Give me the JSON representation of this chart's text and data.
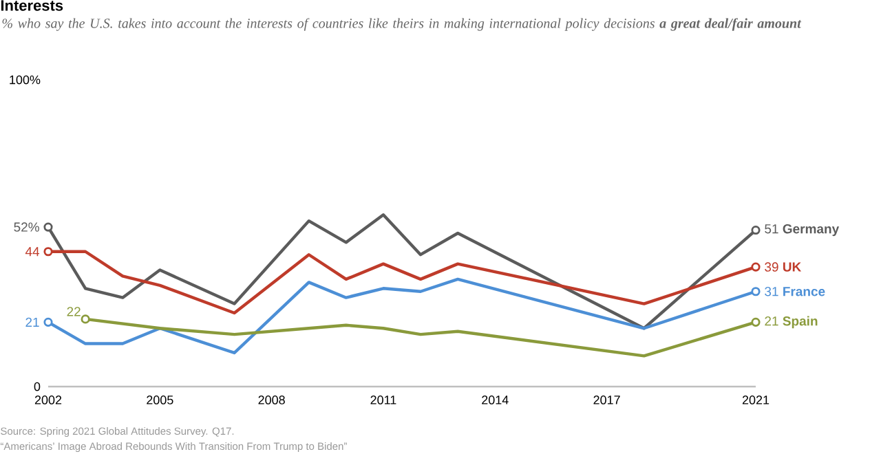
{
  "chart_data": {
    "type": "line",
    "title": "Interests",
    "subtitle": "% who say the U.S. takes into account the interests of countries like theirs in making international policy decisions **a great deal/fair amount**",
    "x": [
      2002,
      2003,
      2004,
      2005,
      2007,
      2009,
      2010,
      2011,
      2012,
      2013,
      2018,
      2021
    ],
    "xlim": [
      2002,
      2021
    ],
    "xticks": [
      2002,
      2005,
      2008,
      2011,
      2014,
      2017,
      2021
    ],
    "ylim": [
      0,
      100
    ],
    "yticks": [
      0,
      {
        "value": 100,
        "label": "100%"
      }
    ],
    "grid": false,
    "line_style": "solid",
    "series": [
      {
        "name": "Germany",
        "color": "#5b5b5b",
        "values": [
          52,
          32,
          29,
          38,
          27,
          54,
          47,
          56,
          43,
          50,
          19,
          51
        ],
        "value_labels": [
          "52%",
          null,
          null,
          null,
          null,
          null,
          null,
          null,
          null,
          null,
          null,
          "51"
        ]
      },
      {
        "name": "UK",
        "color": "#bf3b2a",
        "values": [
          44,
          44,
          36,
          33,
          24,
          43,
          35,
          40,
          35,
          40,
          27,
          39
        ],
        "value_labels": [
          "44",
          null,
          null,
          null,
          null,
          null,
          null,
          null,
          null,
          null,
          null,
          "39"
        ]
      },
      {
        "name": "France",
        "color": "#4c8fd6",
        "values": [
          21,
          14,
          14,
          19,
          11,
          34,
          29,
          32,
          31,
          35,
          19,
          31
        ],
        "value_labels": [
          "21",
          null,
          null,
          null,
          null,
          null,
          null,
          null,
          null,
          null,
          null,
          "31"
        ]
      },
      {
        "name": "Spain",
        "color": "#8a9a3b",
        "x": [
          2003,
          2005,
          2007,
          2009,
          2010,
          2011,
          2012,
          2013,
          2018,
          2021
        ],
        "values": [
          22,
          19,
          17,
          19,
          20,
          19,
          17,
          18,
          10,
          21
        ],
        "value_labels": [
          "22",
          null,
          null,
          null,
          null,
          null,
          null,
          null,
          null,
          "21"
        ]
      }
    ],
    "annotations": [
      "Source: Spring 2021 Global Attitudes Survey. Q17.",
      "“Americans’ Image Abroad Rebounds With Transition From Trump to Biden”"
    ]
  }
}
